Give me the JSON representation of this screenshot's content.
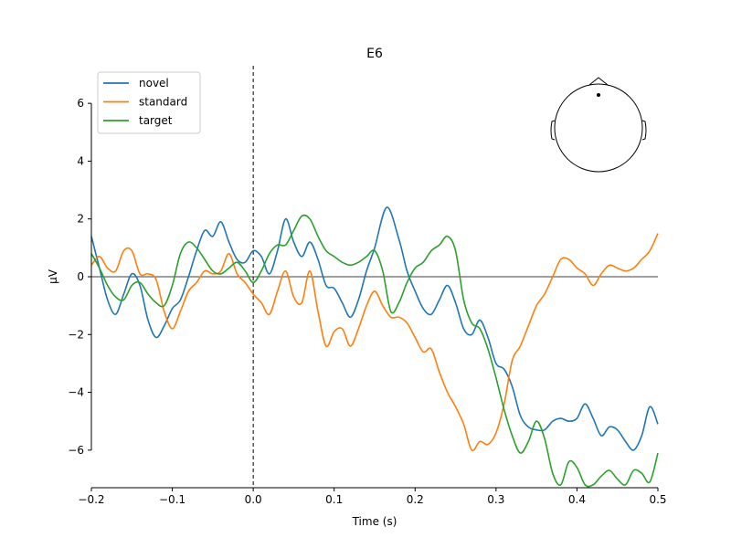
{
  "chart_data": {
    "type": "line",
    "title": "E6",
    "xlabel": "Time (s)",
    "ylabel": "µV",
    "xlim": [
      -0.2,
      0.5
    ],
    "ylim": [
      -7.3,
      7.3
    ],
    "xticks": [
      -0.2,
      -0.1,
      0.0,
      0.1,
      0.2,
      0.3,
      0.4,
      0.5
    ],
    "xtick_labels": [
      "−0.2",
      "−0.1",
      "0.0",
      "0.1",
      "0.2",
      "0.3",
      "0.4",
      "0.5"
    ],
    "yticks": [
      -6,
      -4,
      -2,
      0,
      2,
      4,
      6
    ],
    "ytick_labels": [
      "−6",
      "−4",
      "−2",
      "0",
      "2",
      "4",
      "6"
    ],
    "legend_position": "top-left",
    "zero_line": true,
    "stimulus_onset_line": 0.0,
    "sensor_inset": "head-outline-top-right",
    "series": [
      {
        "name": "novel",
        "color": "#1f77b4",
        "x": [
          -0.2,
          -0.19,
          -0.18,
          -0.17,
          -0.16,
          -0.15,
          -0.14,
          -0.13,
          -0.12,
          -0.11,
          -0.1,
          -0.09,
          -0.08,
          -0.07,
          -0.06,
          -0.05,
          -0.04,
          -0.03,
          -0.02,
          -0.01,
          0.0,
          0.01,
          0.02,
          0.03,
          0.04,
          0.05,
          0.06,
          0.07,
          0.08,
          0.09,
          0.1,
          0.11,
          0.12,
          0.13,
          0.14,
          0.15,
          0.165,
          0.18,
          0.19,
          0.2,
          0.21,
          0.22,
          0.23,
          0.24,
          0.25,
          0.26,
          0.27,
          0.28,
          0.29,
          0.3,
          0.31,
          0.32,
          0.33,
          0.34,
          0.35,
          0.36,
          0.37,
          0.38,
          0.39,
          0.4,
          0.41,
          0.42,
          0.43,
          0.44,
          0.45,
          0.46,
          0.47,
          0.48,
          0.49,
          0.5
        ],
        "y": [
          1.4,
          0.3,
          -0.8,
          -1.3,
          -0.6,
          0.1,
          -0.3,
          -1.5,
          -2.1,
          -1.7,
          -1.1,
          -0.8,
          0.0,
          0.9,
          1.6,
          1.4,
          1.9,
          1.2,
          0.6,
          0.5,
          0.9,
          0.7,
          0.1,
          0.9,
          2.0,
          1.2,
          0.7,
          1.2,
          0.6,
          -0.3,
          -0.4,
          -0.9,
          -1.4,
          -0.8,
          0.2,
          1.0,
          2.4,
          1.3,
          0.2,
          -0.5,
          -1.1,
          -1.3,
          -0.8,
          -0.3,
          -0.9,
          -1.8,
          -2.0,
          -1.5,
          -2.1,
          -3.0,
          -3.2,
          -3.8,
          -4.8,
          -5.2,
          -5.3,
          -5.3,
          -5.0,
          -4.9,
          -5.0,
          -4.9,
          -4.4,
          -4.9,
          -5.5,
          -5.2,
          -5.3,
          -5.7,
          -6.0,
          -5.5,
          -4.5,
          -5.1
        ]
      },
      {
        "name": "standard",
        "color": "#ff7f0e",
        "x": [
          -0.2,
          -0.19,
          -0.18,
          -0.17,
          -0.16,
          -0.15,
          -0.14,
          -0.13,
          -0.12,
          -0.11,
          -0.1,
          -0.09,
          -0.08,
          -0.07,
          -0.06,
          -0.05,
          -0.04,
          -0.03,
          -0.02,
          -0.01,
          0.0,
          0.01,
          0.02,
          0.03,
          0.04,
          0.05,
          0.06,
          0.07,
          0.08,
          0.09,
          0.1,
          0.11,
          0.12,
          0.13,
          0.14,
          0.15,
          0.16,
          0.17,
          0.18,
          0.19,
          0.2,
          0.21,
          0.22,
          0.23,
          0.24,
          0.25,
          0.26,
          0.27,
          0.28,
          0.29,
          0.3,
          0.31,
          0.32,
          0.33,
          0.34,
          0.35,
          0.36,
          0.37,
          0.38,
          0.39,
          0.4,
          0.41,
          0.42,
          0.43,
          0.44,
          0.45,
          0.46,
          0.47,
          0.48,
          0.49,
          0.5
        ],
        "y": [
          0.4,
          0.7,
          0.3,
          0.2,
          0.9,
          0.9,
          0.1,
          0.1,
          -0.1,
          -1.2,
          -1.8,
          -1.2,
          -0.5,
          -0.2,
          0.2,
          0.1,
          0.2,
          0.8,
          0.1,
          -0.2,
          -0.6,
          -0.9,
          -1.3,
          -0.5,
          0.2,
          -0.7,
          -0.9,
          0.2,
          -1.2,
          -2.4,
          -1.9,
          -1.8,
          -2.4,
          -1.8,
          -1.0,
          -0.5,
          -1.0,
          -1.4,
          -1.4,
          -1.6,
          -2.1,
          -2.6,
          -2.5,
          -3.3,
          -4.0,
          -4.5,
          -5.1,
          -6.0,
          -5.7,
          -5.8,
          -5.4,
          -4.4,
          -2.9,
          -2.4,
          -1.7,
          -1.0,
          -0.6,
          0.0,
          0.6,
          0.6,
          0.3,
          0.1,
          -0.3,
          0.1,
          0.4,
          0.3,
          0.2,
          0.3,
          0.6,
          0.9,
          1.5
        ]
      },
      {
        "name": "target",
        "color": "#2ca02c",
        "x": [
          -0.2,
          -0.19,
          -0.18,
          -0.17,
          -0.16,
          -0.15,
          -0.14,
          -0.13,
          -0.12,
          -0.11,
          -0.1,
          -0.09,
          -0.08,
          -0.07,
          -0.06,
          -0.05,
          -0.04,
          -0.03,
          -0.02,
          -0.01,
          0.0,
          0.01,
          0.02,
          0.03,
          0.04,
          0.05,
          0.06,
          0.07,
          0.08,
          0.09,
          0.1,
          0.11,
          0.12,
          0.13,
          0.14,
          0.15,
          0.16,
          0.17,
          0.18,
          0.19,
          0.2,
          0.21,
          0.22,
          0.23,
          0.24,
          0.25,
          0.26,
          0.27,
          0.28,
          0.29,
          0.3,
          0.31,
          0.32,
          0.33,
          0.34,
          0.35,
          0.36,
          0.37,
          0.38,
          0.39,
          0.4,
          0.41,
          0.42,
          0.43,
          0.44,
          0.45,
          0.46,
          0.47,
          0.48,
          0.49,
          0.5
        ],
        "y": [
          0.8,
          0.3,
          -0.3,
          -0.7,
          -0.8,
          -0.3,
          -0.2,
          -0.6,
          -0.9,
          -1.0,
          -0.3,
          0.8,
          1.2,
          1.0,
          0.6,
          0.2,
          0.1,
          0.3,
          0.5,
          0.2,
          -0.2,
          0.2,
          0.8,
          1.1,
          1.1,
          1.6,
          2.1,
          2.0,
          1.4,
          0.9,
          0.7,
          0.5,
          0.4,
          0.5,
          0.7,
          0.9,
          0.2,
          -1.2,
          -0.9,
          -0.2,
          0.3,
          0.5,
          0.9,
          1.1,
          1.4,
          0.9,
          -0.8,
          -1.6,
          -1.8,
          -2.5,
          -3.5,
          -4.6,
          -5.5,
          -6.1,
          -5.7,
          -5.0,
          -5.6,
          -6.8,
          -7.2,
          -6.4,
          -6.6,
          -7.2,
          -7.2,
          -6.9,
          -6.7,
          -7.0,
          -7.2,
          -6.7,
          -6.8,
          -7.1,
          -6.1
        ]
      }
    ]
  }
}
